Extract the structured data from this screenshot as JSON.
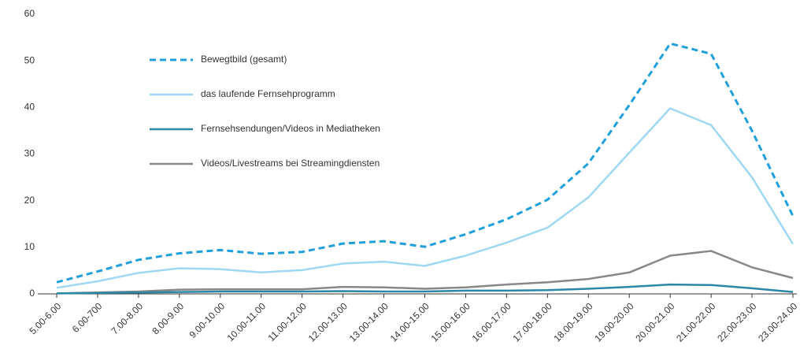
{
  "chart_data": {
    "type": "line",
    "categories": [
      "5.00-6.00",
      "6.00-700",
      "7.00-8.00",
      "8.00-9.00",
      "9.00-10.00",
      "10.00-11.00",
      "11.00-12.00",
      "12.00-13.00",
      "13.00-14.00",
      "14.00-15.00",
      "15.00-16.00",
      "16.00-17.00",
      "17.00-18.00",
      "18.00-19.00",
      "19.00-20.00",
      "20.00-21.00",
      "21.00-22.00",
      "22.00-23.00",
      "23.00-24.00"
    ],
    "series": [
      {
        "name": "Bewegtbild (gesamt)",
        "color": "#1fa0dc",
        "dashed": true,
        "values": [
          2.5,
          4.8,
          7.3,
          8.7,
          9.4,
          8.6,
          9.0,
          10.8,
          11.3,
          10.1,
          12.8,
          16,
          20.2,
          28,
          40.5,
          53.7,
          51.5,
          35,
          16.7
        ]
      },
      {
        "name": "das laufende Fernsehprogramm",
        "color": "#9ed8f2",
        "dashed": false,
        "values": [
          1.3,
          2.7,
          4.5,
          5.5,
          5.3,
          4.6,
          5.1,
          6.5,
          6.9,
          6.0,
          8.2,
          11,
          14.2,
          20.7,
          30.3,
          39.8,
          36.2,
          25,
          10.7
        ]
      },
      {
        "name": "Fernsehsendungen/Videos in Mediatheken",
        "color": "#2b87a8",
        "dashed": false,
        "values": [
          0.1,
          0.2,
          0.3,
          0.4,
          0.5,
          0.5,
          0.5,
          0.6,
          0.5,
          0.5,
          0.7,
          0.7,
          0.8,
          1.1,
          1.5,
          2.0,
          1.9,
          1.2,
          0.4
        ]
      },
      {
        "name": "Videos/Livestreams bei Streamingdiensten",
        "color": "#888888",
        "dashed": false,
        "values": [
          0.1,
          0.3,
          0.5,
          0.9,
          1.0,
          1.0,
          1.0,
          1.5,
          1.4,
          1.1,
          1.4,
          2.0,
          2.5,
          3.2,
          4.6,
          8.2,
          9.2,
          5.7,
          3.4
        ]
      }
    ],
    "ylim": [
      0,
      60
    ],
    "yticks": [
      0,
      10,
      20,
      30,
      40,
      50,
      60
    ]
  }
}
